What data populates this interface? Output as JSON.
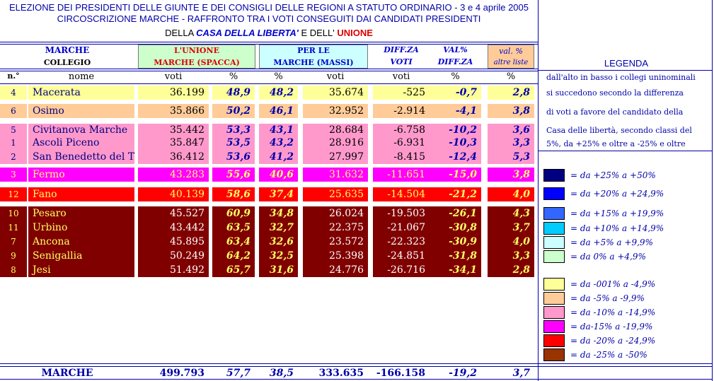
{
  "header": {
    "line1": "ELEZIONE DEI PRESIDENTI DELLE GIUNTE E DEI CONSIGLI DELLE REGIONI A STATUTO ORDINARIO - 3 e 4 aprile 2005",
    "line2": "CIRCOSCRIZIONE MARCHE - RAFFRONTO TRA I VOTI CONSEGUITI DAI  CANDIDATI PRESIDENTI",
    "line3_prefix": "DELLA ",
    "line3_cdl": "CASA DELLA LIBERTA'",
    "line3_mid": "  E  DELL' ",
    "line3_unione": "UNIONE"
  },
  "colheads": {
    "marche": "MARCHE",
    "collegio": "COLLEGIO",
    "unione": "L'UNIONE",
    "unione_sub": "MARCHE  (SPACCA)",
    "perle": "PER LE",
    "perle_sub": "MARCHE  (MASSI)",
    "diffza": "DIFF.ZA",
    "valpct": "VAL%",
    "voti": "VOTI",
    "diffza2": "DIFF.ZA",
    "valpct_altre": "val. %",
    "altre_liste": "altre liste"
  },
  "subheads": {
    "n": "n.°",
    "nome": "nome",
    "voti1": "voti",
    "pct1": "%",
    "pct2": "%",
    "voti2": "voti",
    "voti3": "voti",
    "pct3": "%",
    "pct4": "%"
  },
  "rows": [
    {
      "n": "4",
      "nome": "Macerata",
      "v1": "36.199",
      "p1": "48,9",
      "p2": "48,2",
      "v2": "35.674",
      "d": "-525",
      "dp": "-0,7",
      "a": "2,8",
      "bg": "#ffff99",
      "fg": "#000080",
      "numfg": "#000000"
    },
    {
      "n": "6",
      "nome": "Osimo",
      "v1": "35.866",
      "p1": "50,2",
      "p2": "46,1",
      "v2": "32.952",
      "d": "-2.914",
      "dp": "-4,1",
      "a": "3,8",
      "bg": "#ffcc99",
      "fg": "#000080",
      "numfg": "#000000"
    },
    {
      "n": "5",
      "nome": "Civitanova Marche",
      "v1": "35.442",
      "p1": "53,3",
      "p2": "43,1",
      "v2": "28.684",
      "d": "-6.758",
      "dp": "-10,2",
      "a": "3,6",
      "bg": "#ff99cc",
      "fg": "#000080",
      "numfg": "#000000"
    },
    {
      "n": "1",
      "nome": "Ascoli Piceno",
      "v1": "35.847",
      "p1": "53,5",
      "p2": "43,2",
      "v2": "28.916",
      "d": "-6.931",
      "dp": "-10,3",
      "a": "3,3",
      "bg": "#ff99cc",
      "fg": "#000080",
      "numfg": "#000000"
    },
    {
      "n": "2",
      "nome": "San Benedetto del Tr",
      "v1": "36.412",
      "p1": "53,6",
      "p2": "41,2",
      "v2": "27.997",
      "d": "-8.415",
      "dp": "-12,4",
      "a": "5,3",
      "bg": "#ff99cc",
      "fg": "#000080",
      "numfg": "#000000"
    },
    {
      "n": "3",
      "nome": "Fermo",
      "v1": "43.283",
      "p1": "55,6",
      "p2": "40,6",
      "v2": "31.632",
      "d": "-11.651",
      "dp": "-15,0",
      "a": "3,8",
      "bg": "#ff00ff",
      "fg": "#ffff66",
      "numfg": "#ffff66"
    },
    {
      "n": "12",
      "nome": "Fano",
      "v1": "40.139",
      "p1": "58,6",
      "p2": "37,4",
      "v2": "25.635",
      "d": "-14.504",
      "dp": "-21,2",
      "a": "4,0",
      "bg": "#ff0000",
      "fg": "#ffff66",
      "numfg": "#ffff66"
    },
    {
      "n": "10",
      "nome": "Pesaro",
      "v1": "45.527",
      "p1": "60,9",
      "p2": "34,8",
      "v2": "26.024",
      "d": "-19.503",
      "dp": "-26,1",
      "a": "4,3",
      "bg": "#800000",
      "fg": "#ffff66",
      "numfg": "#ffffff"
    },
    {
      "n": "11",
      "nome": "Urbino",
      "v1": "43.442",
      "p1": "63,5",
      "p2": "32,7",
      "v2": "22.375",
      "d": "-21.067",
      "dp": "-30,8",
      "a": "3,7",
      "bg": "#800000",
      "fg": "#ffff66",
      "numfg": "#ffffff"
    },
    {
      "n": "7",
      "nome": "Ancona",
      "v1": "45.895",
      "p1": "63,4",
      "p2": "32,6",
      "v2": "23.572",
      "d": "-22.323",
      "dp": "-30,9",
      "a": "4,0",
      "bg": "#800000",
      "fg": "#ffff66",
      "numfg": "#ffffff"
    },
    {
      "n": "9",
      "nome": "Senigallia",
      "v1": "50.249",
      "p1": "64,2",
      "p2": "32,5",
      "v2": "25.398",
      "d": "-24.851",
      "dp": "-31,8",
      "a": "3,3",
      "bg": "#800000",
      "fg": "#ffff66",
      "numfg": "#ffffff"
    },
    {
      "n": "8",
      "nome": "Jesi",
      "v1": "51.492",
      "p1": "65,7",
      "p2": "31,6",
      "v2": "24.776",
      "d": "-26.716",
      "dp": "-34,1",
      "a": "2,8",
      "bg": "#800000",
      "fg": "#ffff66",
      "numfg": "#ffffff"
    }
  ],
  "total": {
    "nome": "MARCHE",
    "v1": "499.793",
    "p1": "57,7",
    "p2": "38,5",
    "v2": "333.635",
    "d": "-166.158",
    "dp": "-19,2",
    "a": "3,7"
  },
  "legend": {
    "title": "LEGENDA",
    "notes": [
      "dall'alto in basso i collegi uninominali",
      "si succedono secondo la differenza",
      "di voti  a favore del candidato della",
      "Casa delle libertà, secondo classi del",
      "5%, da +25% e oltre  a -25% e oltre"
    ],
    "items": [
      {
        "label": "= da +25% a +50%",
        "color": "#000080"
      },
      {
        "label": "= da +20% a +24,9%",
        "color": "#0000ff"
      },
      {
        "label": "= da +15% a +19,9%",
        "color": "#3366ff"
      },
      {
        "label": "= da +10% a +14,9%",
        "color": "#00ccff"
      },
      {
        "label": "= da +5% a +9,9%",
        "color": "#ccffff"
      },
      {
        "label": "= da 0% a +4,9%",
        "color": "#ccffcc"
      },
      {
        "label": "= da -001% a -4,9%",
        "color": "#ffff99"
      },
      {
        "label": "= da -5% a -9,9%",
        "color": "#ffcc99"
      },
      {
        "label": "= da -10% a -14,9%",
        "color": "#ff99cc"
      },
      {
        "label": "= da-15% a -19,9%",
        "color": "#ff00ff"
      },
      {
        "label": "= da -20% a -24,9%",
        "color": "#ff0000"
      },
      {
        "label": "= da -25% a -50%",
        "color": "#993300"
      }
    ]
  }
}
